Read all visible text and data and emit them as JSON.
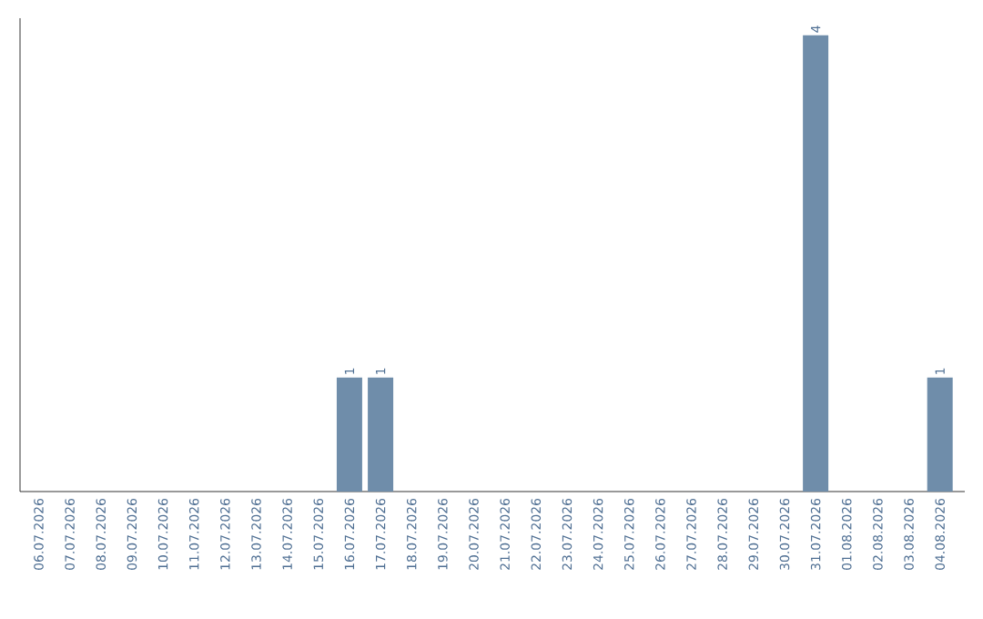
{
  "chart_data": {
    "type": "bar",
    "categories": [
      "06.07.2026",
      "07.07.2026",
      "08.07.2026",
      "09.07.2026",
      "10.07.2026",
      "11.07.2026",
      "12.07.2026",
      "13.07.2026",
      "14.07.2026",
      "15.07.2026",
      "16.07.2026",
      "17.07.2026",
      "18.07.2026",
      "19.07.2026",
      "20.07.2026",
      "21.07.2026",
      "22.07.2026",
      "23.07.2026",
      "24.07.2026",
      "25.07.2026",
      "26.07.2026",
      "27.07.2026",
      "28.07.2026",
      "29.07.2026",
      "30.07.2026",
      "31.07.2026",
      "01.08.2026",
      "02.08.2026",
      "03.08.2026",
      "04.08.2026"
    ],
    "values": [
      0,
      0,
      0,
      0,
      0,
      0,
      0,
      0,
      0,
      0,
      1,
      1,
      0,
      0,
      0,
      0,
      0,
      0,
      0,
      0,
      0,
      0,
      0,
      0,
      0,
      4,
      0,
      0,
      0,
      1
    ],
    "value_labels": [
      null,
      null,
      null,
      null,
      null,
      null,
      null,
      null,
      null,
      null,
      "1",
      "1",
      null,
      null,
      null,
      null,
      null,
      null,
      null,
      null,
      null,
      null,
      null,
      null,
      null,
      "4",
      null,
      null,
      null,
      "1"
    ],
    "color": "#6f8daa",
    "ylim": [
      0,
      4.15
    ],
    "tick_labels": "x"
  }
}
